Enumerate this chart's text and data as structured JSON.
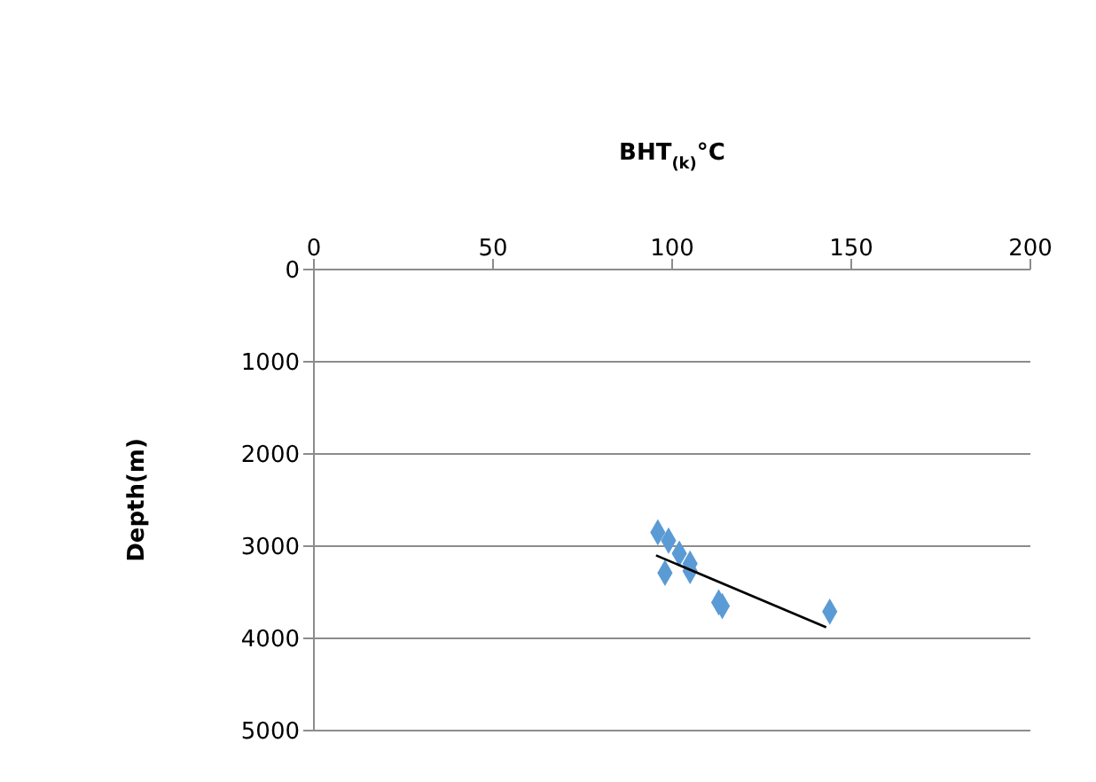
{
  "chart_data": {
    "type": "scatter",
    "xlabel": "BHT$_{(k)}$°C",
    "ylabel": "Depth(m)",
    "x": [
      96,
      99,
      102,
      105,
      98,
      105,
      113,
      114,
      144
    ],
    "series": [
      {
        "color": "#5b9bd5",
        "marker": "diamond",
        "values": [
          2850,
          2940,
          3080,
          3190,
          3290,
          3270,
          3610,
          3650,
          3710
        ]
      },
      {
        "type": "line",
        "color": "#000000",
        "marker": "none",
        "x": [
          95.5,
          143
        ],
        "values": [
          3100,
          3880
        ]
      }
    ],
    "xlim": [
      0,
      200
    ],
    "xticks": [
      0,
      50,
      100,
      150,
      200
    ],
    "ylim": [
      5000,
      0
    ],
    "yticks": [
      0,
      1000,
      2000,
      3000,
      4000,
      5000
    ],
    "grid": "y",
    "legend": false
  }
}
